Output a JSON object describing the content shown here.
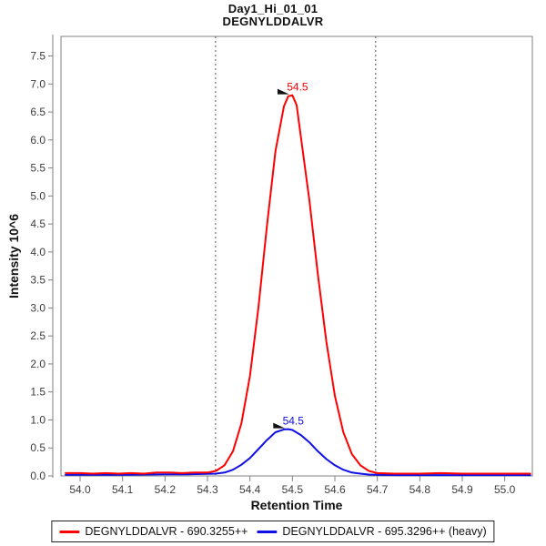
{
  "chart_data": {
    "type": "line",
    "title": "Day1_Hi_01_01",
    "subtitle": "DEGNYLDDALVR",
    "xlabel": "Retention Time",
    "ylabel": "Intensity 10^6",
    "xlim": [
      53.955,
      55.065
    ],
    "ylim": [
      0,
      7.85
    ],
    "x_tick_labels": [
      "54.0",
      "54.1",
      "54.2",
      "54.3",
      "54.4",
      "54.5",
      "54.6",
      "54.7",
      "54.8",
      "54.9",
      "55.0"
    ],
    "y_tick_labels": [
      "0.0",
      "0.5",
      "1.0",
      "1.5",
      "2.0",
      "2.5",
      "3.0",
      "3.5",
      "4.0",
      "4.5",
      "5.0",
      "5.5",
      "6.0",
      "6.5",
      "7.0",
      "7.5"
    ],
    "grid": false,
    "legend_position": "bottom",
    "frame_color": "#808080",
    "tick_label_color": "#3d3d3d",
    "boundary_color": "#555555",
    "integration_boundaries": [
      54.319,
      54.696
    ],
    "series": [
      {
        "name": "DEGNYLDDALVR - 690.3255++",
        "color": "#ff0000",
        "peak_label": "54.5",
        "apex": [
          54.497,
          6.8
        ],
        "points": [
          [
            53.966,
            0.05
          ],
          [
            54.0,
            0.05
          ],
          [
            54.03,
            0.04
          ],
          [
            54.06,
            0.05
          ],
          [
            54.09,
            0.04
          ],
          [
            54.12,
            0.05
          ],
          [
            54.15,
            0.04
          ],
          [
            54.18,
            0.06
          ],
          [
            54.21,
            0.06
          ],
          [
            54.24,
            0.05
          ],
          [
            54.27,
            0.06
          ],
          [
            54.3,
            0.06
          ],
          [
            54.32,
            0.09
          ],
          [
            54.34,
            0.19
          ],
          [
            54.36,
            0.44
          ],
          [
            54.38,
            0.94
          ],
          [
            54.4,
            1.79
          ],
          [
            54.42,
            3.01
          ],
          [
            54.44,
            4.46
          ],
          [
            54.46,
            5.8
          ],
          [
            54.48,
            6.6
          ],
          [
            54.49,
            6.78
          ],
          [
            54.5,
            6.8
          ],
          [
            54.51,
            6.62
          ],
          [
            54.52,
            6.05
          ],
          [
            54.54,
            4.92
          ],
          [
            54.56,
            3.6
          ],
          [
            54.58,
            2.39
          ],
          [
            54.6,
            1.43
          ],
          [
            54.62,
            0.78
          ],
          [
            54.64,
            0.39
          ],
          [
            54.66,
            0.19
          ],
          [
            54.68,
            0.09
          ],
          [
            54.7,
            0.05
          ],
          [
            54.74,
            0.04
          ],
          [
            54.8,
            0.04
          ],
          [
            54.85,
            0.05
          ],
          [
            54.9,
            0.04
          ],
          [
            54.95,
            0.04
          ],
          [
            55.0,
            0.04
          ],
          [
            55.06,
            0.04
          ]
        ]
      },
      {
        "name": "DEGNYLDDALVR - 695.3296++ (heavy)",
        "color": "#0f0fe6",
        "peak_label": "54.5",
        "apex": [
          54.487,
          0.835
        ],
        "points": [
          [
            53.966,
            0.02
          ],
          [
            54.05,
            0.02
          ],
          [
            54.1,
            0.02
          ],
          [
            54.15,
            0.025
          ],
          [
            54.2,
            0.03
          ],
          [
            54.25,
            0.03
          ],
          [
            54.3,
            0.035
          ],
          [
            54.32,
            0.04
          ],
          [
            54.34,
            0.06
          ],
          [
            54.36,
            0.11
          ],
          [
            54.38,
            0.2
          ],
          [
            54.4,
            0.32
          ],
          [
            54.42,
            0.48
          ],
          [
            54.44,
            0.64
          ],
          [
            54.46,
            0.78
          ],
          [
            54.48,
            0.83
          ],
          [
            54.49,
            0.835
          ],
          [
            54.5,
            0.82
          ],
          [
            54.52,
            0.73
          ],
          [
            54.54,
            0.6
          ],
          [
            54.56,
            0.44
          ],
          [
            54.58,
            0.3
          ],
          [
            54.6,
            0.19
          ],
          [
            54.62,
            0.11
          ],
          [
            54.64,
            0.06
          ],
          [
            54.66,
            0.04
          ],
          [
            54.68,
            0.025
          ],
          [
            54.7,
            0.02
          ],
          [
            54.75,
            0.015
          ],
          [
            54.8,
            0.015
          ],
          [
            54.9,
            0.015
          ],
          [
            55.0,
            0.015
          ],
          [
            55.06,
            0.015
          ]
        ]
      }
    ]
  }
}
